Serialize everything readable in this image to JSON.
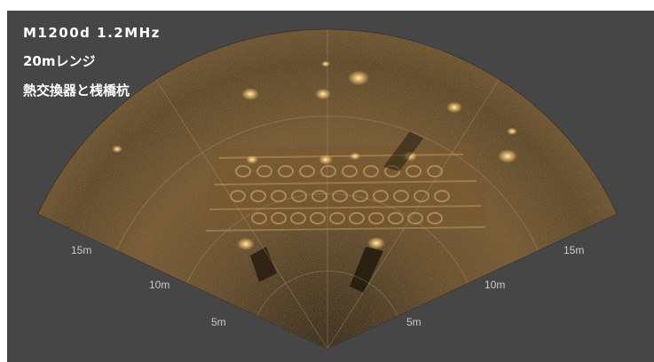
{
  "sonar": {
    "model_label": "M1200d 1.2MHz",
    "range_label": "20mレンジ",
    "subject_label": "熱交換器と桟橋杭",
    "range_rings": [
      {
        "label_left": "5m",
        "label_right": "5m"
      },
      {
        "label_left": "10m",
        "label_right": "10m"
      },
      {
        "label_left": "15m",
        "label_right": "15m"
      }
    ],
    "colors": {
      "background": "#464646",
      "sonar_dark": "#2a1f12",
      "sonar_mid": "#6b4f2a",
      "sonar_bright": "#f0c070",
      "grid": "#b0a080"
    },
    "fan_type": "sector-scan"
  }
}
